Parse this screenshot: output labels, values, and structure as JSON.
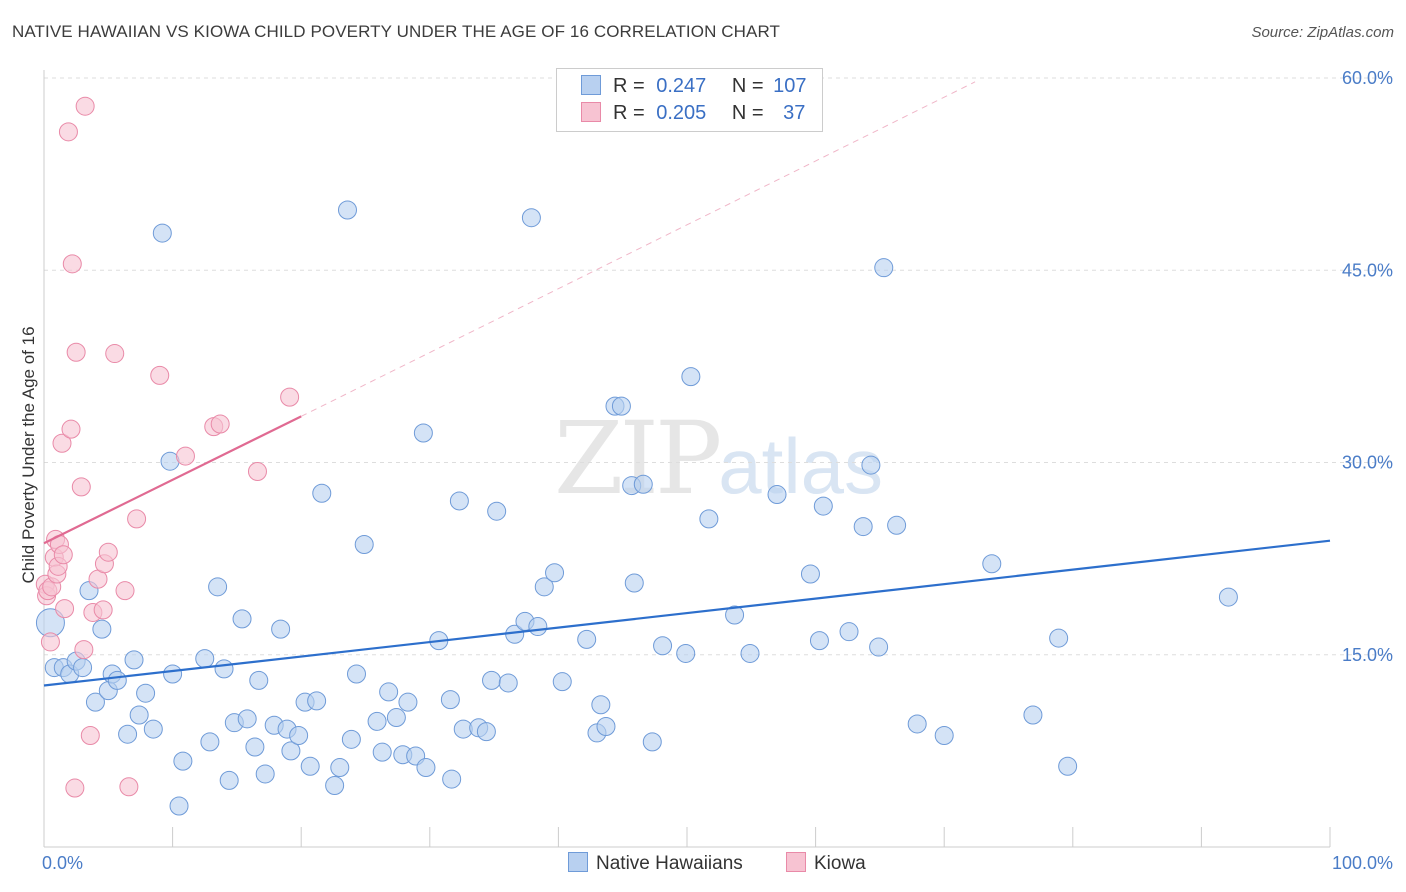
{
  "title": "NATIVE HAWAIIAN VS KIOWA CHILD POVERTY UNDER THE AGE OF 16 CORRELATION CHART",
  "source": "Source: ZipAtlas.com",
  "watermark": {
    "zip": "ZIP",
    "atlas": "atlas"
  },
  "legend": {
    "r_label": "R =",
    "n_label": "N =",
    "rows": [
      {
        "series": "Native Hawaiians",
        "r": "0.247",
        "n": "107"
      },
      {
        "series": "Kiowa",
        "r": "0.205",
        "n": "37"
      }
    ]
  },
  "bottom_legend": [
    "Native Hawaiians",
    "Kiowa"
  ],
  "colors": {
    "blue_fill": "#b8d0f0",
    "blue_stroke": "#6f9bd8",
    "blue_line": "#2d6fcc",
    "pink_fill": "#f7c3d2",
    "pink_stroke": "#e98aa8",
    "pink_line": "#e06a92",
    "grid": "#dddddd",
    "tick_text": "#4a7cc7"
  },
  "chart_data": {
    "type": "scatter",
    "title": "NATIVE HAWAIIAN VS KIOWA CHILD POVERTY UNDER THE AGE OF 16 CORRELATION CHART",
    "xlabel": "",
    "ylabel": "Child Poverty Under the Age of 16",
    "xlim": [
      0,
      100
    ],
    "ylim": [
      0,
      60
    ],
    "x_tick_labels": [
      {
        "value": 0,
        "label": "0.0%"
      },
      {
        "value": 100,
        "label": "100.0%"
      }
    ],
    "y_tick_labels": [
      {
        "value": 15,
        "label": "15.0%"
      },
      {
        "value": 30,
        "label": "30.0%"
      },
      {
        "value": 45,
        "label": "45.0%"
      },
      {
        "value": 60,
        "label": "60.0%"
      }
    ],
    "grid_y": [
      15,
      30,
      45,
      60
    ],
    "series": [
      {
        "name": "Native Hawaiians",
        "points": [
          {
            "x": 0.5,
            "y": 17.5
          },
          {
            "x": 0.8,
            "y": 14
          },
          {
            "x": 1.5,
            "y": 14
          },
          {
            "x": 2,
            "y": 13.5
          },
          {
            "x": 2.5,
            "y": 14.5
          },
          {
            "x": 3,
            "y": 14
          },
          {
            "x": 3.5,
            "y": 20
          },
          {
            "x": 4,
            "y": 11.3
          },
          {
            "x": 4.5,
            "y": 17
          },
          {
            "x": 5,
            "y": 12.2
          },
          {
            "x": 5.3,
            "y": 13.5
          },
          {
            "x": 5.7,
            "y": 13
          },
          {
            "x": 6.5,
            "y": 8.8
          },
          {
            "x": 7,
            "y": 14.6
          },
          {
            "x": 7.4,
            "y": 10.3
          },
          {
            "x": 7.9,
            "y": 12
          },
          {
            "x": 8.5,
            "y": 9.2
          },
          {
            "x": 9.2,
            "y": 47.9
          },
          {
            "x": 9.8,
            "y": 30.1
          },
          {
            "x": 10,
            "y": 13.5
          },
          {
            "x": 10.5,
            "y": 3.2
          },
          {
            "x": 10.8,
            "y": 6.7
          },
          {
            "x": 12.5,
            "y": 14.7
          },
          {
            "x": 12.9,
            "y": 8.2
          },
          {
            "x": 13.5,
            "y": 20.3
          },
          {
            "x": 14,
            "y": 13.9
          },
          {
            "x": 14.4,
            "y": 5.2
          },
          {
            "x": 14.8,
            "y": 9.7
          },
          {
            "x": 15.4,
            "y": 17.8
          },
          {
            "x": 15.8,
            "y": 10
          },
          {
            "x": 16.4,
            "y": 7.8
          },
          {
            "x": 16.7,
            "y": 13
          },
          {
            "x": 17.2,
            "y": 5.7
          },
          {
            "x": 17.9,
            "y": 9.5
          },
          {
            "x": 18.4,
            "y": 17
          },
          {
            "x": 18.9,
            "y": 9.2
          },
          {
            "x": 19.2,
            "y": 7.5
          },
          {
            "x": 19.8,
            "y": 8.7
          },
          {
            "x": 20.3,
            "y": 11.3
          },
          {
            "x": 20.7,
            "y": 6.3
          },
          {
            "x": 21.2,
            "y": 11.4
          },
          {
            "x": 21.6,
            "y": 27.6
          },
          {
            "x": 22.6,
            "y": 4.8
          },
          {
            "x": 23,
            "y": 6.2
          },
          {
            "x": 23.6,
            "y": 49.7
          },
          {
            "x": 23.9,
            "y": 8.4
          },
          {
            "x": 24.3,
            "y": 13.5
          },
          {
            "x": 24.9,
            "y": 23.6
          },
          {
            "x": 25.9,
            "y": 9.8
          },
          {
            "x": 26.3,
            "y": 7.4
          },
          {
            "x": 26.8,
            "y": 12.1
          },
          {
            "x": 27.4,
            "y": 10.1
          },
          {
            "x": 27.9,
            "y": 7.2
          },
          {
            "x": 28.3,
            "y": 11.3
          },
          {
            "x": 28.9,
            "y": 7.1
          },
          {
            "x": 29.5,
            "y": 32.3
          },
          {
            "x": 29.7,
            "y": 6.2
          },
          {
            "x": 30.7,
            "y": 16.1
          },
          {
            "x": 31.6,
            "y": 11.5
          },
          {
            "x": 31.7,
            "y": 5.3
          },
          {
            "x": 32.3,
            "y": 27
          },
          {
            "x": 32.6,
            "y": 9.2
          },
          {
            "x": 33.8,
            "y": 9.3
          },
          {
            "x": 34.4,
            "y": 9
          },
          {
            "x": 34.8,
            "y": 13
          },
          {
            "x": 35.2,
            "y": 26.2
          },
          {
            "x": 36.1,
            "y": 12.8
          },
          {
            "x": 36.6,
            "y": 16.6
          },
          {
            "x": 37.4,
            "y": 17.6
          },
          {
            "x": 37.9,
            "y": 49.1
          },
          {
            "x": 38.4,
            "y": 17.2
          },
          {
            "x": 38.9,
            "y": 20.3
          },
          {
            "x": 39.7,
            "y": 21.4
          },
          {
            "x": 40.3,
            "y": 12.9
          },
          {
            "x": 42.2,
            "y": 16.2
          },
          {
            "x": 43,
            "y": 8.9
          },
          {
            "x": 43.3,
            "y": 11.1
          },
          {
            "x": 43.7,
            "y": 9.4
          },
          {
            "x": 44.4,
            "y": 34.4
          },
          {
            "x": 44.9,
            "y": 34.4
          },
          {
            "x": 45.7,
            "y": 28.2
          },
          {
            "x": 45.9,
            "y": 20.6
          },
          {
            "x": 46.6,
            "y": 28.3
          },
          {
            "x": 47.3,
            "y": 8.2
          },
          {
            "x": 48.1,
            "y": 15.7
          },
          {
            "x": 49.9,
            "y": 15.1
          },
          {
            "x": 50.3,
            "y": 36.7
          },
          {
            "x": 51.7,
            "y": 25.6
          },
          {
            "x": 53.7,
            "y": 18.1
          },
          {
            "x": 54.9,
            "y": 15.1
          },
          {
            "x": 57,
            "y": 27.5
          },
          {
            "x": 59.6,
            "y": 21.3
          },
          {
            "x": 60.3,
            "y": 16.1
          },
          {
            "x": 60.6,
            "y": 26.6
          },
          {
            "x": 62.6,
            "y": 16.8
          },
          {
            "x": 63.7,
            "y": 25
          },
          {
            "x": 64.3,
            "y": 29.8
          },
          {
            "x": 64.9,
            "y": 15.6
          },
          {
            "x": 65.3,
            "y": 45.2
          },
          {
            "x": 66.3,
            "y": 25.1
          },
          {
            "x": 67.9,
            "y": 9.6
          },
          {
            "x": 70,
            "y": 8.7
          },
          {
            "x": 73.7,
            "y": 22.1
          },
          {
            "x": 76.9,
            "y": 10.3
          },
          {
            "x": 78.9,
            "y": 16.3
          },
          {
            "x": 79.6,
            "y": 6.3
          },
          {
            "x": 92.1,
            "y": 19.5
          }
        ],
        "trendline": {
          "x0": 0,
          "y0": 12.6,
          "x1": 100,
          "y1": 23.9
        }
      },
      {
        "name": "Kiowa",
        "points": [
          {
            "x": 0.1,
            "y": 20.5
          },
          {
            "x": 0.2,
            "y": 19.6
          },
          {
            "x": 0.3,
            "y": 20
          },
          {
            "x": 0.5,
            "y": 16
          },
          {
            "x": 0.6,
            "y": 20.3
          },
          {
            "x": 0.8,
            "y": 22.6
          },
          {
            "x": 0.9,
            "y": 24
          },
          {
            "x": 1,
            "y": 21.3
          },
          {
            "x": 1.1,
            "y": 21.9
          },
          {
            "x": 1.2,
            "y": 23.6
          },
          {
            "x": 1.4,
            "y": 31.5
          },
          {
            "x": 1.5,
            "y": 22.8
          },
          {
            "x": 1.6,
            "y": 18.6
          },
          {
            "x": 1.9,
            "y": 55.8
          },
          {
            "x": 2.1,
            "y": 32.6
          },
          {
            "x": 2.2,
            "y": 45.5
          },
          {
            "x": 2.4,
            "y": 4.6
          },
          {
            "x": 2.5,
            "y": 38.6
          },
          {
            "x": 2.9,
            "y": 28.1
          },
          {
            "x": 3.1,
            "y": 15.4
          },
          {
            "x": 3.2,
            "y": 57.8
          },
          {
            "x": 3.6,
            "y": 8.7
          },
          {
            "x": 3.8,
            "y": 18.3
          },
          {
            "x": 4.2,
            "y": 20.9
          },
          {
            "x": 4.6,
            "y": 18.5
          },
          {
            "x": 4.7,
            "y": 22.1
          },
          {
            "x": 5,
            "y": 23
          },
          {
            "x": 5.5,
            "y": 38.5
          },
          {
            "x": 6.3,
            "y": 20
          },
          {
            "x": 6.6,
            "y": 4.7
          },
          {
            "x": 7.2,
            "y": 25.6
          },
          {
            "x": 9,
            "y": 36.8
          },
          {
            "x": 11,
            "y": 30.5
          },
          {
            "x": 13.2,
            "y": 32.8
          },
          {
            "x": 13.7,
            "y": 33
          },
          {
            "x": 16.6,
            "y": 29.3
          },
          {
            "x": 19.1,
            "y": 35.1
          }
        ],
        "trendline": {
          "x0": 0,
          "y0": 23.7,
          "x1": 20,
          "y1": 33.6
        },
        "trendline_extension": {
          "x0": 20,
          "y0": 33.6,
          "x1": 72.4,
          "y1": 59.7
        }
      }
    ]
  }
}
